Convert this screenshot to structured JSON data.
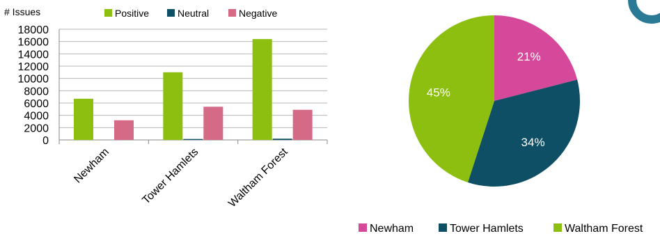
{
  "colors": {
    "positive": "#8cbf0f",
    "neutral": "#0e4f65",
    "negative": "#d46a85",
    "newham": "#d6489a",
    "tower_hamlets": "#0e4f65",
    "waltham_forest": "#8cbf0f",
    "axis": "#888888",
    "grid": "#b7b7b7",
    "corner_badge": "#2a7a96"
  },
  "chart_data": [
    {
      "type": "bar",
      "ylabel": "# Issues",
      "categories": [
        "Newham",
        "Tower Hamlets",
        "Waltham Forest"
      ],
      "series": [
        {
          "name": "Positive",
          "values": [
            6700,
            11000,
            16400
          ]
        },
        {
          "name": "Neutral",
          "values": [
            0,
            150,
            200
          ]
        },
        {
          "name": "Negative",
          "values": [
            3200,
            5400,
            4900
          ]
        }
      ],
      "ylim": [
        0,
        18000
      ],
      "yticks": [
        0,
        2000,
        4000,
        6000,
        8000,
        10000,
        12000,
        14000,
        16000,
        18000
      ],
      "grid": true,
      "legend_position": "top"
    },
    {
      "type": "pie",
      "slices": [
        {
          "name": "Newham",
          "value": 21,
          "label": "21%"
        },
        {
          "name": "Tower Hamlets",
          "value": 34,
          "label": "34%"
        },
        {
          "name": "Waltham Forest",
          "value": 45,
          "label": "45%"
        }
      ],
      "legend": [
        "Newham",
        "Tower Hamlets",
        "Waltham Forest"
      ],
      "legend_position": "bottom"
    }
  ]
}
